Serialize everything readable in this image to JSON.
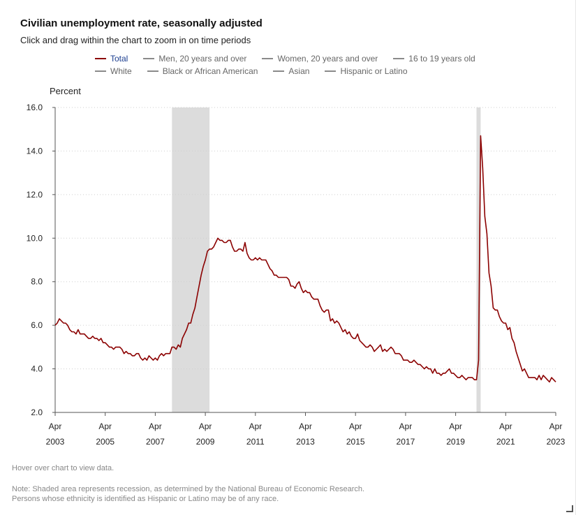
{
  "header": {
    "title": "Civilian unemployment rate, seasonally adjusted",
    "subtitle": "Click and drag within the chart to zoom in on time periods"
  },
  "legend": {
    "row1": [
      "Total",
      "Men, 20 years and over",
      "Women, 20 years and over",
      "16 to 19 years old"
    ],
    "row2": [
      "White",
      "Black or African American",
      "Asian",
      "Hispanic or Latino"
    ],
    "active": "Total"
  },
  "footer": {
    "hover_note": "Hover over chart to view data.",
    "note_line1": "Note: Shaded area represents recession, as determined by the National Bureau of Economic Research.",
    "note_line2": "Persons whose ethnicity is identified as Hispanic or Latino may be of any race."
  },
  "colors": {
    "series": "#8b0000",
    "recession": "#dcdcdc",
    "inactive_swatch": "#8a8a8a",
    "active_legend_text": "#1a3d8f"
  },
  "chart_data": {
    "type": "line",
    "ylabel": "Percent",
    "ylim": [
      2.0,
      16.0
    ],
    "yticks": [
      "2.0",
      "4.0",
      "6.0",
      "8.0",
      "10.0",
      "12.0",
      "14.0",
      "16.0"
    ],
    "xlim": [
      "2003-04",
      "2023-04"
    ],
    "xticks": [
      {
        "month": "Apr",
        "year": "2003"
      },
      {
        "month": "Apr",
        "year": "2005"
      },
      {
        "month": "Apr",
        "year": "2007"
      },
      {
        "month": "Apr",
        "year": "2009"
      },
      {
        "month": "Apr",
        "year": "2011"
      },
      {
        "month": "Apr",
        "year": "2013"
      },
      {
        "month": "Apr",
        "year": "2015"
      },
      {
        "month": "Apr",
        "year": "2017"
      },
      {
        "month": "Apr",
        "year": "2019"
      },
      {
        "month": "Apr",
        "year": "2021"
      },
      {
        "month": "Apr",
        "year": "2023"
      }
    ],
    "grid": "horizontal dotted",
    "recessions": [
      {
        "start": "2007-12",
        "end": "2009-06"
      },
      {
        "start": "2020-02",
        "end": "2020-04"
      }
    ],
    "series": [
      {
        "name": "Total",
        "points": [
          [
            "2003-04",
            6.0
          ],
          [
            "2003-05",
            6.1
          ],
          [
            "2003-06",
            6.3
          ],
          [
            "2003-07",
            6.2
          ],
          [
            "2003-08",
            6.1
          ],
          [
            "2003-09",
            6.1
          ],
          [
            "2003-10",
            6.0
          ],
          [
            "2003-11",
            5.8
          ],
          [
            "2003-12",
            5.7
          ],
          [
            "2004-01",
            5.7
          ],
          [
            "2004-02",
            5.6
          ],
          [
            "2004-03",
            5.8
          ],
          [
            "2004-04",
            5.6
          ],
          [
            "2004-05",
            5.6
          ],
          [
            "2004-06",
            5.6
          ],
          [
            "2004-07",
            5.5
          ],
          [
            "2004-08",
            5.4
          ],
          [
            "2004-09",
            5.4
          ],
          [
            "2004-10",
            5.5
          ],
          [
            "2004-11",
            5.4
          ],
          [
            "2004-12",
            5.4
          ],
          [
            "2005-01",
            5.3
          ],
          [
            "2005-02",
            5.4
          ],
          [
            "2005-03",
            5.2
          ],
          [
            "2005-04",
            5.2
          ],
          [
            "2005-05",
            5.1
          ],
          [
            "2005-06",
            5.0
          ],
          [
            "2005-07",
            5.0
          ],
          [
            "2005-08",
            4.9
          ],
          [
            "2005-09",
            5.0
          ],
          [
            "2005-10",
            5.0
          ],
          [
            "2005-11",
            5.0
          ],
          [
            "2005-12",
            4.9
          ],
          [
            "2006-01",
            4.7
          ],
          [
            "2006-02",
            4.8
          ],
          [
            "2006-03",
            4.7
          ],
          [
            "2006-04",
            4.7
          ],
          [
            "2006-05",
            4.6
          ],
          [
            "2006-06",
            4.6
          ],
          [
            "2006-07",
            4.7
          ],
          [
            "2006-08",
            4.7
          ],
          [
            "2006-09",
            4.5
          ],
          [
            "2006-10",
            4.4
          ],
          [
            "2006-11",
            4.5
          ],
          [
            "2006-12",
            4.4
          ],
          [
            "2007-01",
            4.6
          ],
          [
            "2007-02",
            4.5
          ],
          [
            "2007-03",
            4.4
          ],
          [
            "2007-04",
            4.5
          ],
          [
            "2007-05",
            4.4
          ],
          [
            "2007-06",
            4.6
          ],
          [
            "2007-07",
            4.7
          ],
          [
            "2007-08",
            4.6
          ],
          [
            "2007-09",
            4.7
          ],
          [
            "2007-10",
            4.7
          ],
          [
            "2007-11",
            4.7
          ],
          [
            "2007-12",
            5.0
          ],
          [
            "2008-01",
            5.0
          ],
          [
            "2008-02",
            4.9
          ],
          [
            "2008-03",
            5.1
          ],
          [
            "2008-04",
            5.0
          ],
          [
            "2008-05",
            5.4
          ],
          [
            "2008-06",
            5.6
          ],
          [
            "2008-07",
            5.8
          ],
          [
            "2008-08",
            6.1
          ],
          [
            "2008-09",
            6.1
          ],
          [
            "2008-10",
            6.5
          ],
          [
            "2008-11",
            6.8
          ],
          [
            "2008-12",
            7.3
          ],
          [
            "2009-01",
            7.8
          ],
          [
            "2009-02",
            8.3
          ],
          [
            "2009-03",
            8.7
          ],
          [
            "2009-04",
            9.0
          ],
          [
            "2009-05",
            9.4
          ],
          [
            "2009-06",
            9.5
          ],
          [
            "2009-07",
            9.5
          ],
          [
            "2009-08",
            9.6
          ],
          [
            "2009-09",
            9.8
          ],
          [
            "2009-10",
            10.0
          ],
          [
            "2009-11",
            9.9
          ],
          [
            "2009-12",
            9.9
          ],
          [
            "2010-01",
            9.8
          ],
          [
            "2010-02",
            9.8
          ],
          [
            "2010-03",
            9.9
          ],
          [
            "2010-04",
            9.9
          ],
          [
            "2010-05",
            9.6
          ],
          [
            "2010-06",
            9.4
          ],
          [
            "2010-07",
            9.4
          ],
          [
            "2010-08",
            9.5
          ],
          [
            "2010-09",
            9.5
          ],
          [
            "2010-10",
            9.4
          ],
          [
            "2010-11",
            9.8
          ],
          [
            "2010-12",
            9.3
          ],
          [
            "2011-01",
            9.1
          ],
          [
            "2011-02",
            9.0
          ],
          [
            "2011-03",
            9.0
          ],
          [
            "2011-04",
            9.1
          ],
          [
            "2011-05",
            9.0
          ],
          [
            "2011-06",
            9.1
          ],
          [
            "2011-07",
            9.0
          ],
          [
            "2011-08",
            9.0
          ],
          [
            "2011-09",
            9.0
          ],
          [
            "2011-10",
            8.8
          ],
          [
            "2011-11",
            8.6
          ],
          [
            "2011-12",
            8.5
          ],
          [
            "2012-01",
            8.3
          ],
          [
            "2012-02",
            8.3
          ],
          [
            "2012-03",
            8.2
          ],
          [
            "2012-04",
            8.2
          ],
          [
            "2012-05",
            8.2
          ],
          [
            "2012-06",
            8.2
          ],
          [
            "2012-07",
            8.2
          ],
          [
            "2012-08",
            8.1
          ],
          [
            "2012-09",
            7.8
          ],
          [
            "2012-10",
            7.8
          ],
          [
            "2012-11",
            7.7
          ],
          [
            "2012-12",
            7.9
          ],
          [
            "2013-01",
            8.0
          ],
          [
            "2013-02",
            7.7
          ],
          [
            "2013-03",
            7.5
          ],
          [
            "2013-04",
            7.6
          ],
          [
            "2013-05",
            7.5
          ],
          [
            "2013-06",
            7.5
          ],
          [
            "2013-07",
            7.3
          ],
          [
            "2013-08",
            7.2
          ],
          [
            "2013-09",
            7.2
          ],
          [
            "2013-10",
            7.2
          ],
          [
            "2013-11",
            6.9
          ],
          [
            "2013-12",
            6.7
          ],
          [
            "2014-01",
            6.6
          ],
          [
            "2014-02",
            6.7
          ],
          [
            "2014-03",
            6.7
          ],
          [
            "2014-04",
            6.2
          ],
          [
            "2014-05",
            6.3
          ],
          [
            "2014-06",
            6.1
          ],
          [
            "2014-07",
            6.2
          ],
          [
            "2014-08",
            6.1
          ],
          [
            "2014-09",
            5.9
          ],
          [
            "2014-10",
            5.7
          ],
          [
            "2014-11",
            5.8
          ],
          [
            "2014-12",
            5.6
          ],
          [
            "2015-01",
            5.7
          ],
          [
            "2015-02",
            5.5
          ],
          [
            "2015-03",
            5.4
          ],
          [
            "2015-04",
            5.4
          ],
          [
            "2015-05",
            5.6
          ],
          [
            "2015-06",
            5.3
          ],
          [
            "2015-07",
            5.2
          ],
          [
            "2015-08",
            5.1
          ],
          [
            "2015-09",
            5.0
          ],
          [
            "2015-10",
            5.0
          ],
          [
            "2015-11",
            5.1
          ],
          [
            "2015-12",
            5.0
          ],
          [
            "2016-01",
            4.8
          ],
          [
            "2016-02",
            4.9
          ],
          [
            "2016-03",
            5.0
          ],
          [
            "2016-04",
            5.1
          ],
          [
            "2016-05",
            4.8
          ],
          [
            "2016-06",
            4.9
          ],
          [
            "2016-07",
            4.8
          ],
          [
            "2016-08",
            4.9
          ],
          [
            "2016-09",
            5.0
          ],
          [
            "2016-10",
            4.9
          ],
          [
            "2016-11",
            4.7
          ],
          [
            "2016-12",
            4.7
          ],
          [
            "2017-01",
            4.7
          ],
          [
            "2017-02",
            4.6
          ],
          [
            "2017-03",
            4.4
          ],
          [
            "2017-04",
            4.4
          ],
          [
            "2017-05",
            4.4
          ],
          [
            "2017-06",
            4.3
          ],
          [
            "2017-07",
            4.3
          ],
          [
            "2017-08",
            4.4
          ],
          [
            "2017-09",
            4.3
          ],
          [
            "2017-10",
            4.2
          ],
          [
            "2017-11",
            4.2
          ],
          [
            "2017-12",
            4.1
          ],
          [
            "2018-01",
            4.0
          ],
          [
            "2018-02",
            4.1
          ],
          [
            "2018-03",
            4.0
          ],
          [
            "2018-04",
            4.0
          ],
          [
            "2018-05",
            3.8
          ],
          [
            "2018-06",
            4.0
          ],
          [
            "2018-07",
            3.8
          ],
          [
            "2018-08",
            3.8
          ],
          [
            "2018-09",
            3.7
          ],
          [
            "2018-10",
            3.8
          ],
          [
            "2018-11",
            3.8
          ],
          [
            "2018-12",
            3.9
          ],
          [
            "2019-01",
            4.0
          ],
          [
            "2019-02",
            3.8
          ],
          [
            "2019-03",
            3.8
          ],
          [
            "2019-04",
            3.7
          ],
          [
            "2019-05",
            3.6
          ],
          [
            "2019-06",
            3.6
          ],
          [
            "2019-07",
            3.7
          ],
          [
            "2019-08",
            3.6
          ],
          [
            "2019-09",
            3.5
          ],
          [
            "2019-10",
            3.6
          ],
          [
            "2019-11",
            3.6
          ],
          [
            "2019-12",
            3.6
          ],
          [
            "2020-01",
            3.5
          ],
          [
            "2020-02",
            3.5
          ],
          [
            "2020-03",
            4.4
          ],
          [
            "2020-04",
            14.7
          ],
          [
            "2020-05",
            13.2
          ],
          [
            "2020-06",
            11.0
          ],
          [
            "2020-07",
            10.2
          ],
          [
            "2020-08",
            8.4
          ],
          [
            "2020-09",
            7.8
          ],
          [
            "2020-10",
            6.8
          ],
          [
            "2020-11",
            6.7
          ],
          [
            "2020-12",
            6.7
          ],
          [
            "2021-01",
            6.4
          ],
          [
            "2021-02",
            6.2
          ],
          [
            "2021-03",
            6.1
          ],
          [
            "2021-04",
            6.1
          ],
          [
            "2021-05",
            5.8
          ],
          [
            "2021-06",
            5.9
          ],
          [
            "2021-07",
            5.4
          ],
          [
            "2021-08",
            5.2
          ],
          [
            "2021-09",
            4.8
          ],
          [
            "2021-10",
            4.5
          ],
          [
            "2021-11",
            4.2
          ],
          [
            "2021-12",
            3.9
          ],
          [
            "2022-01",
            4.0
          ],
          [
            "2022-02",
            3.8
          ],
          [
            "2022-03",
            3.6
          ],
          [
            "2022-04",
            3.6
          ],
          [
            "2022-05",
            3.6
          ],
          [
            "2022-06",
            3.6
          ],
          [
            "2022-07",
            3.5
          ],
          [
            "2022-08",
            3.7
          ],
          [
            "2022-09",
            3.5
          ],
          [
            "2022-10",
            3.7
          ],
          [
            "2022-11",
            3.6
          ],
          [
            "2022-12",
            3.5
          ],
          [
            "2023-01",
            3.4
          ],
          [
            "2023-02",
            3.6
          ],
          [
            "2023-03",
            3.5
          ],
          [
            "2023-04",
            3.4
          ]
        ]
      }
    ]
  }
}
